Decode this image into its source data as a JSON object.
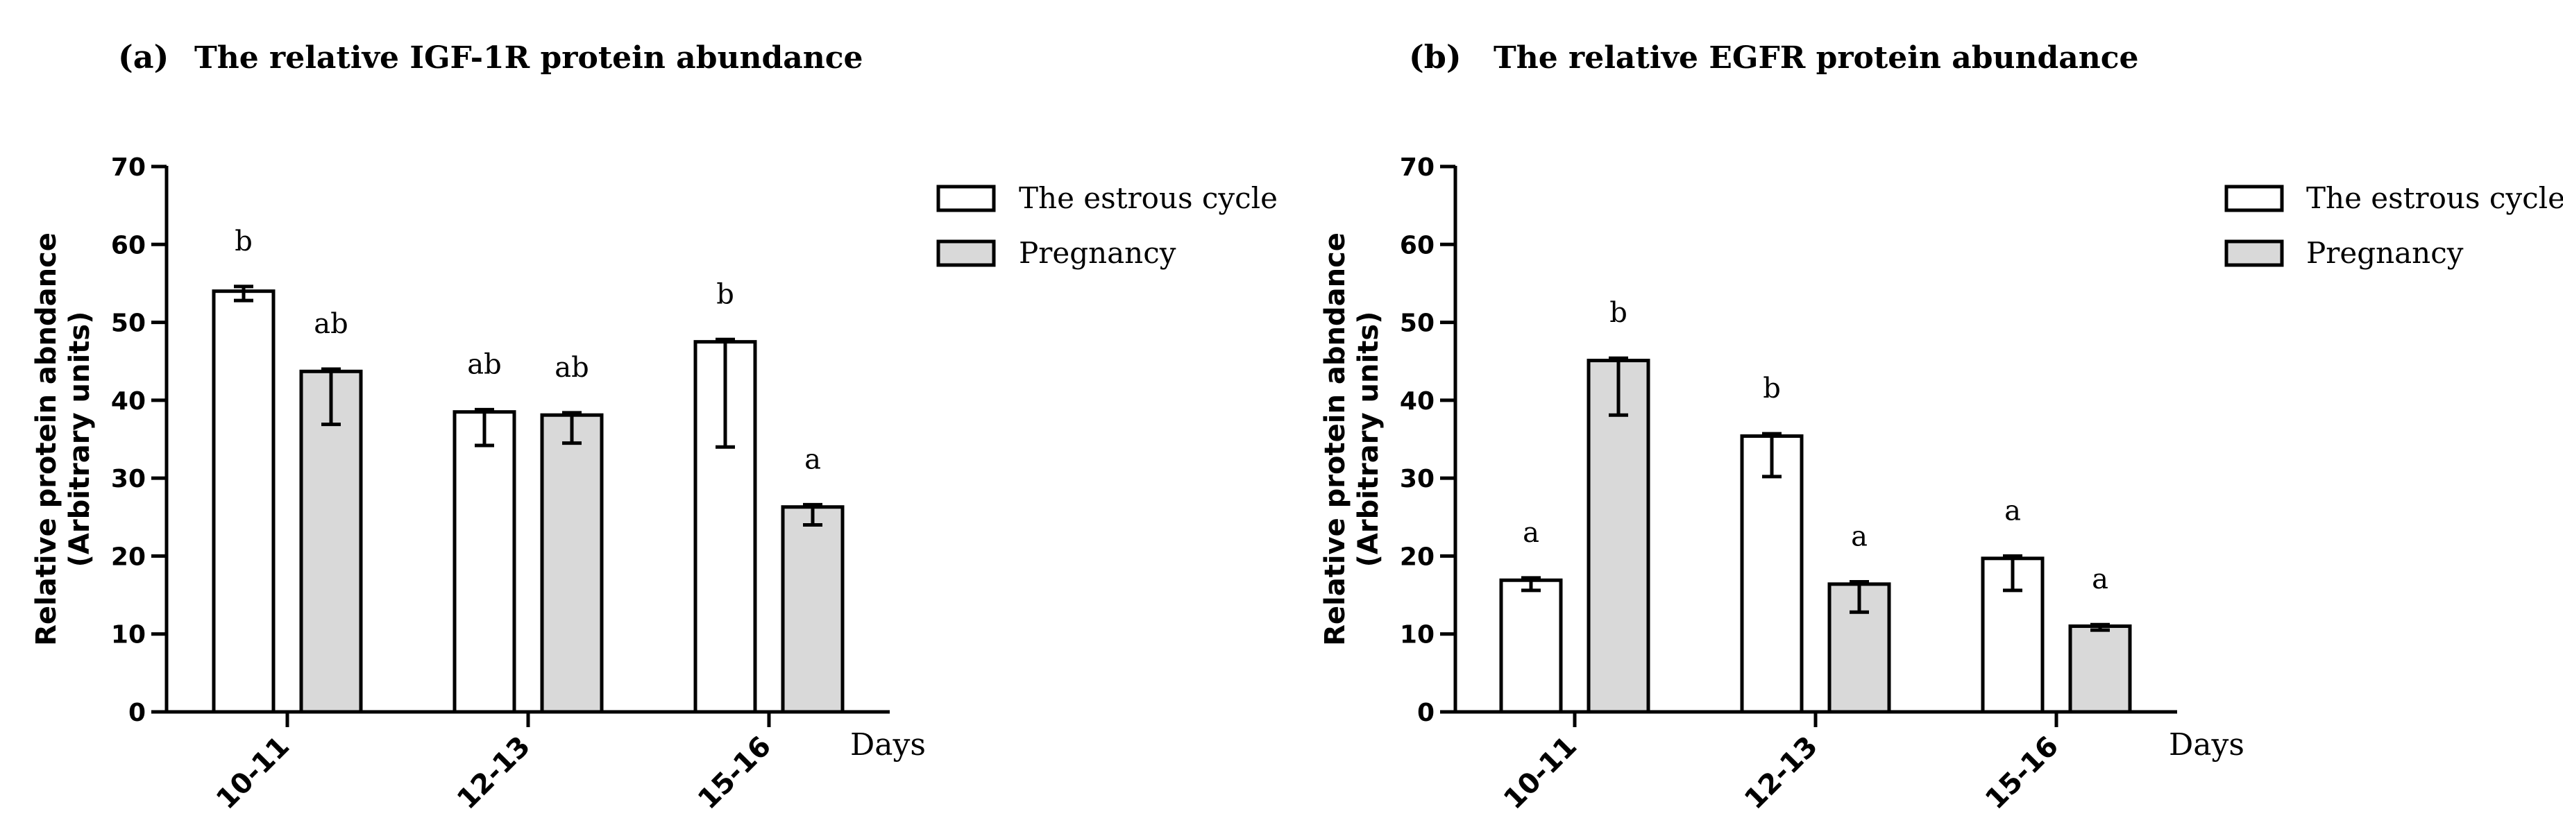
{
  "chart_data": [
    {
      "type": "bar",
      "panel_label": "(a)",
      "title": "The relative IGF-1R protein abundance",
      "ylabel": "Relative protein abndance",
      "ylabel_sub": "(Arbitrary units)",
      "xlabel": "Days",
      "categories": [
        "10-11",
        "12-13",
        "15-16"
      ],
      "ylim": [
        0,
        70
      ],
      "yticks": [
        0,
        10,
        20,
        30,
        40,
        50,
        60,
        70
      ],
      "series": [
        {
          "name": "The estrous cycle",
          "color": "#ffffff",
          "values": [
            54.0,
            38.5,
            47.5
          ],
          "err_low": [
            1.2,
            4.3,
            13.5
          ],
          "err_high": [
            0.6,
            0.3,
            0.3
          ],
          "letters": [
            "b",
            "ab",
            "b"
          ]
        },
        {
          "name": "Pregnancy",
          "color": "#d9d9d9",
          "values": [
            43.7,
            38.1,
            26.3
          ],
          "err_low": [
            6.8,
            3.6,
            2.3
          ],
          "err_high": [
            0.3,
            0.3,
            0.3
          ],
          "letters": [
            "ab",
            "ab",
            "a"
          ]
        }
      ]
    },
    {
      "type": "bar",
      "panel_label": "(b)",
      "title": "The relative EGFR protein abundance",
      "ylabel": "Relative protein abndance",
      "ylabel_sub": "(Arbitrary units)",
      "xlabel": "Days",
      "categories": [
        "10-11",
        "12-13",
        "15-16"
      ],
      "ylim": [
        0,
        70
      ],
      "yticks": [
        0,
        10,
        20,
        30,
        40,
        50,
        60,
        70
      ],
      "series": [
        {
          "name": "The estrous cycle",
          "color": "#ffffff",
          "values": [
            16.9,
            35.4,
            19.7
          ],
          "err_low": [
            1.3,
            5.2,
            4.1
          ],
          "err_high": [
            0.3,
            0.3,
            0.3
          ],
          "letters": [
            "a",
            "b",
            "a"
          ]
        },
        {
          "name": "Pregnancy",
          "color": "#d9d9d9",
          "values": [
            45.1,
            16.4,
            11.0
          ],
          "err_low": [
            7.0,
            3.6,
            0.5
          ],
          "err_high": [
            0.3,
            0.3,
            0.2
          ],
          "letters": [
            "b",
            "a",
            "a"
          ]
        }
      ]
    }
  ]
}
